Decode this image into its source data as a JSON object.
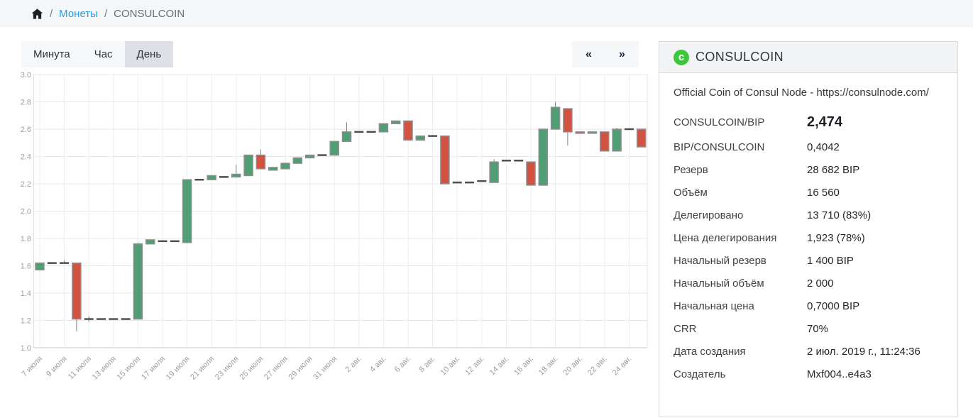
{
  "breadcrumb": {
    "separator": "/",
    "link": "Монеты",
    "current": "CONSULCOIN"
  },
  "tabs": {
    "items": [
      "Минута",
      "Час",
      "День"
    ],
    "active_tab": "День"
  },
  "pager": {
    "prev": "«",
    "next": "»"
  },
  "panel": {
    "title": "CONSULCOIN",
    "coin_letter": "c",
    "description": "Official Coin of Consul Node - https://consulnode.com/",
    "accent_green": "#3ec63e",
    "link_color": "#2b9cea",
    "rows": [
      {
        "label": "CONSULCOIN/BIP",
        "value": "2,474"
      },
      {
        "label": "BIP/CONSULCOIN",
        "value": "0,4042"
      },
      {
        "label": "Резерв",
        "value": "28 682 BIP"
      },
      {
        "label": "Объём",
        "value": "16 560"
      },
      {
        "label": "Делегировано",
        "value": "13 710 (83%)"
      },
      {
        "label": "Цена делегирования",
        "value": "1,923 (78%)"
      },
      {
        "label": "Начальный резерв",
        "value": "1 400 BIP"
      },
      {
        "label": "Начальный объём",
        "value": "2 000"
      },
      {
        "label": "Начальная цена",
        "value": "0,7000 BIP"
      },
      {
        "label": "CRR",
        "value": "70%"
      },
      {
        "label": "Дата создания",
        "value": "2 июл. 2019 г., 11:24:36"
      },
      {
        "label": "Создатель",
        "value": "Mxf004..e4a3"
      }
    ]
  },
  "chart_data": {
    "type": "candlestick",
    "ylim": [
      1.0,
      3.0
    ],
    "y_ticks": [
      "3.0",
      "2.8",
      "2.6",
      "2.4",
      "2.2",
      "2.0",
      "1.8",
      "1.6",
      "1.4",
      "1.2",
      "1.0"
    ],
    "x_tick_every": 2,
    "grid": true,
    "colors": {
      "up": "#4f9e74",
      "down": "#d25342",
      "doji": "#4f4f4f",
      "wick": "#808080",
      "body_stroke": "#8e8e8e",
      "grid": "#e9e9e9",
      "axis_line": "#c9c9c9",
      "axis_text": "#9aa0a5"
    },
    "candles": [
      {
        "date": "7 июля",
        "o": 1.57,
        "c": 1.62
      },
      {
        "date": "8 июля",
        "o": 1.62,
        "c": 1.62
      },
      {
        "date": "9 июля",
        "o": 1.62,
        "c": 1.62,
        "h": 1.64
      },
      {
        "date": "10 июля",
        "o": 1.62,
        "c": 1.21,
        "l": 1.12
      },
      {
        "date": "11 июля",
        "o": 1.21,
        "c": 1.21,
        "h": 1.23,
        "l": 1.19
      },
      {
        "date": "12 июля",
        "o": 1.21,
        "c": 1.21
      },
      {
        "date": "13 июля",
        "o": 1.21,
        "c": 1.21
      },
      {
        "date": "14 июля",
        "o": 1.21,
        "c": 1.21
      },
      {
        "date": "15 июля",
        "o": 1.21,
        "c": 1.76,
        "h": 1.77
      },
      {
        "date": "16 июля",
        "o": 1.76,
        "c": 1.79
      },
      {
        "date": "17 июля",
        "o": 1.78,
        "c": 1.78
      },
      {
        "date": "18 июля",
        "o": 1.78,
        "c": 1.78
      },
      {
        "date": "19 июля",
        "o": 1.77,
        "c": 2.23
      },
      {
        "date": "20 июля",
        "o": 2.23,
        "c": 2.23
      },
      {
        "date": "21 июля",
        "o": 2.23,
        "c": 2.26
      },
      {
        "date": "22 июля",
        "o": 2.25,
        "c": 2.25
      },
      {
        "date": "23 июля",
        "o": 2.25,
        "c": 2.27,
        "h": 2.34
      },
      {
        "date": "24 июля",
        "o": 2.26,
        "c": 2.41
      },
      {
        "date": "25 июля",
        "o": 2.41,
        "c": 2.31,
        "h": 2.45
      },
      {
        "date": "26 июля",
        "o": 2.3,
        "c": 2.32
      },
      {
        "date": "27 июля",
        "o": 2.31,
        "c": 2.35
      },
      {
        "date": "28 июля",
        "o": 2.35,
        "c": 2.39
      },
      {
        "date": "29 июля",
        "o": 2.39,
        "c": 2.41
      },
      {
        "date": "30 июля",
        "o": 2.41,
        "c": 2.41
      },
      {
        "date": "31 июля",
        "o": 2.41,
        "c": 2.51
      },
      {
        "date": "1 авг.",
        "o": 2.51,
        "c": 2.58,
        "h": 2.65
      },
      {
        "date": "2 авг.",
        "o": 2.58,
        "c": 2.58
      },
      {
        "date": "3 авг.",
        "o": 2.58,
        "c": 2.58
      },
      {
        "date": "4 авг.",
        "o": 2.58,
        "c": 2.64
      },
      {
        "date": "5 авг.",
        "o": 2.64,
        "c": 2.66
      },
      {
        "date": "6 авг.",
        "o": 2.66,
        "c": 2.52
      },
      {
        "date": "7 авг.",
        "o": 2.52,
        "c": 2.55
      },
      {
        "date": "8 авг.",
        "o": 2.55,
        "c": 2.55
      },
      {
        "date": "9 авг.",
        "o": 2.55,
        "c": 2.2
      },
      {
        "date": "10 авг.",
        "o": 2.21,
        "c": 2.21
      },
      {
        "date": "11 авг.",
        "o": 2.21,
        "c": 2.21
      },
      {
        "date": "12 авг.",
        "o": 2.22,
        "c": 2.22
      },
      {
        "date": "13 авг.",
        "o": 2.21,
        "c": 2.36,
        "h": 2.38
      },
      {
        "date": "14 авг.",
        "o": 2.37,
        "c": 2.37
      },
      {
        "date": "15 авг.",
        "o": 2.37,
        "c": 2.37
      },
      {
        "date": "16 авг.",
        "o": 2.36,
        "c": 2.19
      },
      {
        "date": "17 авг.",
        "o": 2.19,
        "c": 2.6
      },
      {
        "date": "18 авг.",
        "o": 2.6,
        "c": 2.76,
        "h": 2.8
      },
      {
        "date": "19 авг.",
        "o": 2.75,
        "c": 2.58,
        "l": 2.48
      },
      {
        "date": "20 авг.",
        "o": 2.58,
        "c": 2.57
      },
      {
        "date": "21 авг.",
        "o": 2.57,
        "c": 2.58
      },
      {
        "date": "22 авг.",
        "o": 2.58,
        "c": 2.44
      },
      {
        "date": "23 авг.",
        "o": 2.44,
        "c": 2.6,
        "h": 2.61
      },
      {
        "date": "24 авг.",
        "o": 2.6,
        "c": 2.6
      },
      {
        "date": "25 авг.",
        "o": 2.6,
        "c": 2.47
      }
    ]
  }
}
